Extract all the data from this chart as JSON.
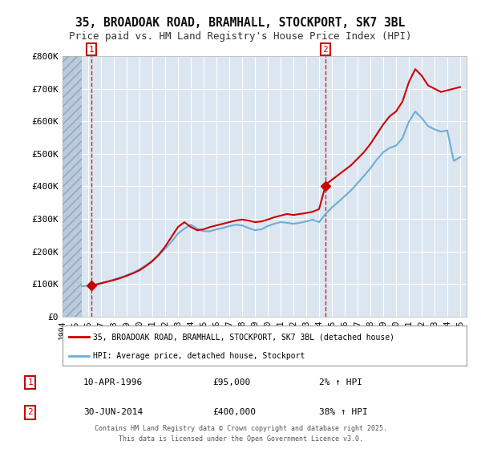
{
  "title": "35, BROADOAK ROAD, BRAMHALL, STOCKPORT, SK7 3BL",
  "subtitle": "Price paid vs. HM Land Registry's House Price Index (HPI)",
  "title_fontsize": 10.5,
  "subtitle_fontsize": 9,
  "background_color": "#ffffff",
  "plot_bg_color": "#dce6f1",
  "grid_color": "#ffffff",
  "hatch_color": "#b0c4d8",
  "ylabel_ticks": [
    "£0",
    "£100K",
    "£200K",
    "£300K",
    "£400K",
    "£500K",
    "£600K",
    "£700K",
    "£800K"
  ],
  "ytick_values": [
    0,
    100000,
    200000,
    300000,
    400000,
    500000,
    600000,
    700000,
    800000
  ],
  "ylim": [
    0,
    800000
  ],
  "xlim_start": 1994.0,
  "xlim_end": 2025.5,
  "transaction1_year": 1996.27,
  "transaction1_price": 95000,
  "transaction1_label": "1",
  "transaction1_date": "10-APR-1996",
  "transaction1_price_str": "£95,000",
  "transaction1_hpi_str": "2% ↑ HPI",
  "transaction2_year": 2014.49,
  "transaction2_price": 400000,
  "transaction2_label": "2",
  "transaction2_date": "30-JUN-2014",
  "transaction2_price_str": "£400,000",
  "transaction2_hpi_str": "38% ↑ HPI",
  "hpi_line_color": "#6baed6",
  "price_line_color": "#cc0000",
  "marker_color": "#cc0000",
  "vline_color": "#cc0000",
  "hatch_end_year": 1995.5,
  "xtick_years": [
    1994,
    1995,
    1996,
    1997,
    1998,
    1999,
    2000,
    2001,
    2002,
    2003,
    2004,
    2005,
    2006,
    2007,
    2008,
    2009,
    2010,
    2011,
    2012,
    2013,
    2014,
    2015,
    2016,
    2017,
    2018,
    2019,
    2020,
    2021,
    2022,
    2023,
    2024,
    2025
  ],
  "property_years": [
    1996.27,
    1996.5,
    1997,
    1997.5,
    1998,
    1998.5,
    1999,
    1999.5,
    2000,
    2000.5,
    2001,
    2001.5,
    2002,
    2002.5,
    2003,
    2003.5,
    2004,
    2004.5,
    2005,
    2005.5,
    2006,
    2006.5,
    2007,
    2007.5,
    2008,
    2008.5,
    2009,
    2009.5,
    2010,
    2010.5,
    2011,
    2011.5,
    2012,
    2012.5,
    2013,
    2013.5,
    2014.0,
    2014.49,
    2014.5,
    2015,
    2015.5,
    2016,
    2016.5,
    2017,
    2017.5,
    2018,
    2018.5,
    2019,
    2019.5,
    2020,
    2020.5,
    2021,
    2021.5,
    2022,
    2022.5,
    2023,
    2023.5,
    2024,
    2024.5,
    2025
  ],
  "property_values": [
    95000,
    97000,
    102000,
    107000,
    112000,
    118000,
    125000,
    133000,
    142000,
    155000,
    170000,
    190000,
    215000,
    245000,
    275000,
    290000,
    275000,
    265000,
    268000,
    275000,
    280000,
    285000,
    290000,
    295000,
    298000,
    295000,
    290000,
    292000,
    298000,
    305000,
    310000,
    315000,
    312000,
    315000,
    318000,
    322000,
    330000,
    400000,
    405000,
    420000,
    435000,
    450000,
    465000,
    485000,
    505000,
    530000,
    560000,
    590000,
    615000,
    630000,
    660000,
    720000,
    760000,
    740000,
    710000,
    700000,
    690000,
    695000,
    700000,
    705000
  ],
  "hpi_years": [
    1995.5,
    1996,
    1996.5,
    1997,
    1997.5,
    1998,
    1998.5,
    1999,
    1999.5,
    2000,
    2000.5,
    2001,
    2001.5,
    2002,
    2002.5,
    2003,
    2003.5,
    2004,
    2004.5,
    2005,
    2005.5,
    2006,
    2006.5,
    2007,
    2007.5,
    2008,
    2008.5,
    2009,
    2009.5,
    2010,
    2010.5,
    2011,
    2011.5,
    2012,
    2012.5,
    2013,
    2013.5,
    2014,
    2014.5,
    2015,
    2015.5,
    2016,
    2016.5,
    2017,
    2017.5,
    2018,
    2018.5,
    2019,
    2019.5,
    2020,
    2020.5,
    2021,
    2021.5,
    2022,
    2022.5,
    2023,
    2023.5,
    2024,
    2024.5,
    2025
  ],
  "hpi_values": [
    93000,
    95000,
    98000,
    103000,
    108000,
    114000,
    120000,
    127000,
    135000,
    145000,
    158000,
    172000,
    188000,
    208000,
    230000,
    255000,
    270000,
    282000,
    270000,
    262000,
    262000,
    268000,
    272000,
    278000,
    282000,
    280000,
    272000,
    265000,
    268000,
    278000,
    285000,
    290000,
    288000,
    285000,
    288000,
    292000,
    298000,
    290000,
    315000,
    335000,
    352000,
    370000,
    388000,
    410000,
    432000,
    455000,
    482000,
    505000,
    518000,
    525000,
    548000,
    598000,
    630000,
    610000,
    585000,
    575000,
    568000,
    572000,
    478000,
    490000
  ],
  "legend_label1": "35, BROADOAK ROAD, BRAMHALL, STOCKPORT, SK7 3BL (detached house)",
  "legend_label2": "HPI: Average price, detached house, Stockport",
  "footer_line1": "Contains HM Land Registry data © Crown copyright and database right 2025.",
  "footer_line2": "This data is licensed under the Open Government Licence v3.0."
}
